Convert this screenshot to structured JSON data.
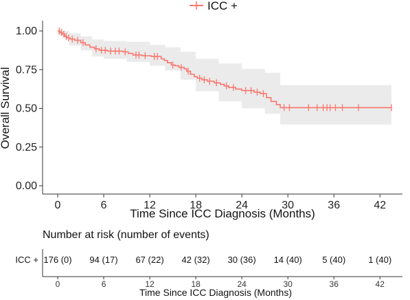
{
  "chart_data": {
    "type": "line",
    "subtype": "kaplan-meier",
    "xlabel": "Time Since ICC Diagnosis (Months)",
    "ylabel": "Overall Survival",
    "xlim": [
      -2,
      45
    ],
    "ylim": [
      0,
      1
    ],
    "x_ticks": [
      "0",
      "6",
      "12",
      "18",
      "24",
      "30",
      "36",
      "42"
    ],
    "y_ticks": [
      "0.00",
      "0.25",
      "0.50",
      "0.75",
      "1.00"
    ],
    "legend_position": "top",
    "grid": false,
    "confidence_band": true,
    "series": [
      {
        "name": "ICC +",
        "color": "#f8766d",
        "band_color": "#ebebeb",
        "steps": [
          [
            0,
            1.0
          ],
          [
            0.3,
            0.99
          ],
          [
            0.6,
            0.98
          ],
          [
            0.9,
            0.965
          ],
          [
            1.2,
            0.955
          ],
          [
            1.6,
            0.948
          ],
          [
            2.2,
            0.94
          ],
          [
            3.0,
            0.925
          ],
          [
            3.6,
            0.91
          ],
          [
            4.2,
            0.895
          ],
          [
            4.8,
            0.885
          ],
          [
            5.4,
            0.875
          ],
          [
            6.5,
            0.87
          ],
          [
            8.5,
            0.865
          ],
          [
            9.2,
            0.855
          ],
          [
            9.8,
            0.845
          ],
          [
            11.0,
            0.84
          ],
          [
            12.2,
            0.835
          ],
          [
            13.5,
            0.82
          ],
          [
            13.9,
            0.81
          ],
          [
            14.3,
            0.795
          ],
          [
            14.8,
            0.78
          ],
          [
            15.3,
            0.775
          ],
          [
            15.8,
            0.765
          ],
          [
            16.5,
            0.755
          ],
          [
            16.8,
            0.74
          ],
          [
            17.3,
            0.72
          ],
          [
            17.8,
            0.705
          ],
          [
            18.2,
            0.695
          ],
          [
            18.8,
            0.685
          ],
          [
            19.5,
            0.675
          ],
          [
            20.4,
            0.665
          ],
          [
            21.2,
            0.655
          ],
          [
            21.7,
            0.645
          ],
          [
            22.3,
            0.635
          ],
          [
            23.2,
            0.625
          ],
          [
            24.0,
            0.615
          ],
          [
            25.6,
            0.605
          ],
          [
            26.4,
            0.595
          ],
          [
            27.2,
            0.57
          ],
          [
            27.8,
            0.545
          ],
          [
            28.5,
            0.525
          ],
          [
            29.0,
            0.505
          ],
          [
            43.5,
            0.505
          ]
        ],
        "band_upper": [
          [
            0,
            1.0
          ],
          [
            1.5,
            0.985
          ],
          [
            3.0,
            0.965
          ],
          [
            4.5,
            0.945
          ],
          [
            6.0,
            0.935
          ],
          [
            9.0,
            0.93
          ],
          [
            12.0,
            0.91
          ],
          [
            14.0,
            0.895
          ],
          [
            16.0,
            0.865
          ],
          [
            18.0,
            0.82
          ],
          [
            21.0,
            0.79
          ],
          [
            24.0,
            0.755
          ],
          [
            27.0,
            0.73
          ],
          [
            29.0,
            0.65
          ],
          [
            43.5,
            0.65
          ]
        ],
        "band_lower": [
          [
            0,
            0.97
          ],
          [
            1.5,
            0.905
          ],
          [
            3.0,
            0.875
          ],
          [
            4.5,
            0.835
          ],
          [
            6.0,
            0.82
          ],
          [
            9.0,
            0.8
          ],
          [
            12.0,
            0.775
          ],
          [
            14.0,
            0.745
          ],
          [
            16.0,
            0.685
          ],
          [
            18.0,
            0.61
          ],
          [
            21.0,
            0.545
          ],
          [
            24.0,
            0.5
          ],
          [
            27.0,
            0.465
          ],
          [
            29.0,
            0.395
          ],
          [
            43.5,
            0.395
          ]
        ],
        "censored": [
          0.2,
          0.5,
          0.8,
          1.1,
          1.4,
          1.9,
          2.6,
          3.3,
          5.0,
          5.7,
          6.2,
          6.9,
          7.5,
          8.0,
          8.8,
          10.2,
          10.6,
          11.4,
          12.6,
          13.0,
          15.0,
          16.1,
          17.0,
          18.5,
          19.1,
          19.8,
          20.7,
          22.0,
          22.9,
          24.5,
          25.2,
          26.0,
          26.8,
          29.5,
          30.2,
          32.7,
          33.8,
          34.6,
          35.1,
          35.5,
          36.2,
          37.1,
          39.2,
          43.5
        ]
      }
    ]
  },
  "risk_table": {
    "title": "Number at risk (number of events)",
    "row_label": "ICC +",
    "row_color": "#f8766d",
    "times": [
      "0",
      "6",
      "12",
      "18",
      "24",
      "30",
      "36",
      "42"
    ],
    "cells": [
      "176 (0)",
      "94 (17)",
      "67 (22)",
      "42 (32)",
      "30 (36)",
      "14 (40)",
      "5 (40)",
      "1 (40)"
    ],
    "xlabel": "Time Since ICC Diagnosis (Months)"
  }
}
